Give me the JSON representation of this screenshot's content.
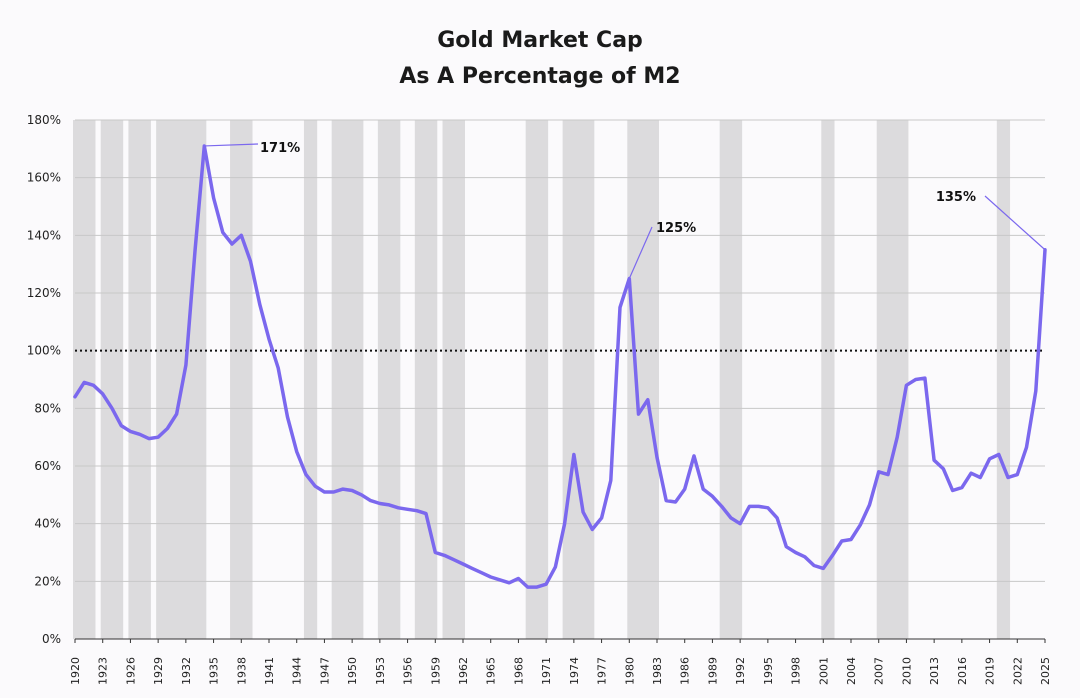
{
  "chart_data": {
    "type": "line",
    "title": "Gold Market Cap",
    "subtitle": "As A Percentage of M2",
    "xlabel": "",
    "ylabel": "",
    "xlim": [
      1920,
      2025
    ],
    "ylim": [
      0,
      180
    ],
    "yticks": [
      0,
      20,
      40,
      60,
      80,
      100,
      120,
      140,
      160,
      180
    ],
    "ytick_labels": [
      "0%",
      "20%",
      "40%",
      "60%",
      "80%",
      "100%",
      "120%",
      "140%",
      "160%",
      "180%"
    ],
    "xticks": [
      1920,
      1923,
      1926,
      1929,
      1932,
      1935,
      1938,
      1941,
      1944,
      1947,
      1950,
      1953,
      1956,
      1959,
      1962,
      1965,
      1968,
      1971,
      1974,
      1977,
      1980,
      1983,
      1986,
      1989,
      1992,
      1995,
      1998,
      2001,
      2004,
      2007,
      2010,
      2013,
      2016,
      2019,
      2022,
      2025
    ],
    "reference_line": {
      "y": 100,
      "style": "dotted"
    },
    "recession_bands": [
      [
        1920,
        1921
      ],
      [
        1923,
        1924
      ],
      [
        1926,
        1927
      ],
      [
        1929,
        1933
      ],
      [
        1937,
        1938
      ],
      [
        1945,
        1945
      ],
      [
        1948,
        1950
      ],
      [
        1953,
        1954
      ],
      [
        1957,
        1958
      ],
      [
        1960,
        1961
      ],
      [
        1969,
        1970
      ],
      [
        1973,
        1975
      ],
      [
        1980,
        1980
      ],
      [
        1981,
        1982
      ],
      [
        1990,
        1991
      ],
      [
        2001,
        2001
      ],
      [
        2007,
        2009
      ],
      [
        2020,
        2020
      ]
    ],
    "series": [
      {
        "name": "Gold Market Cap / M2",
        "color": "#7b68ee",
        "x": [
          1920,
          1921,
          1922,
          1923,
          1924,
          1925,
          1926,
          1927,
          1928,
          1929,
          1930,
          1931,
          1932,
          1933,
          1934,
          1935,
          1936,
          1937,
          1938,
          1939,
          1940,
          1941,
          1942,
          1943,
          1944,
          1945,
          1946,
          1947,
          1948,
          1949,
          1950,
          1951,
          1952,
          1953,
          1954,
          1955,
          1956,
          1957,
          1958,
          1959,
          1960,
          1961,
          1962,
          1963,
          1964,
          1965,
          1966,
          1967,
          1968,
          1969,
          1970,
          1971,
          1972,
          1973,
          1974,
          1975,
          1976,
          1977,
          1978,
          1979,
          1980,
          1981,
          1982,
          1983,
          1984,
          1985,
          1986,
          1987,
          1988,
          1989,
          1990,
          1991,
          1992,
          1993,
          1994,
          1995,
          1996,
          1997,
          1998,
          1999,
          2000,
          2001,
          2002,
          2003,
          2004,
          2005,
          2006,
          2007,
          2008,
          2009,
          2010,
          2011,
          2012,
          2013,
          2014,
          2015,
          2016,
          2017,
          2018,
          2019,
          2020,
          2021,
          2022,
          2023,
          2024,
          2025
        ],
        "y": [
          84,
          89,
          88,
          85,
          80,
          74,
          72,
          71,
          69.5,
          70,
          73,
          78,
          95,
          135,
          171,
          153,
          141,
          137,
          140,
          131,
          116,
          104,
          94,
          77,
          65,
          57,
          53,
          51,
          51,
          52,
          51.5,
          50,
          48,
          47,
          46.5,
          45.5,
          45,
          44.5,
          43.5,
          30,
          29,
          27.5,
          26,
          24.5,
          23,
          21.5,
          20.5,
          19.5,
          21,
          18,
          18,
          19,
          25,
          40,
          64,
          44,
          38,
          42,
          55,
          115,
          125,
          78,
          83,
          63,
          48,
          47.5,
          52,
          63.5,
          52,
          49.5,
          46,
          42,
          40,
          46,
          46,
          45.5,
          42,
          32,
          30,
          28.5,
          25.5,
          24.5,
          29,
          34,
          34.5,
          39.5,
          46.5,
          58,
          57,
          70,
          88,
          90,
          90.5,
          62,
          59,
          51.5,
          52.5,
          57.5,
          56,
          62.5,
          64,
          56,
          57,
          66.5,
          86,
          135
        ]
      }
    ],
    "annotations": [
      {
        "label": "171%",
        "x": 1934,
        "y": 171
      },
      {
        "label": "125%",
        "x": 1980,
        "y": 125
      },
      {
        "label": "135%",
        "x": 2025,
        "y": 135
      }
    ]
  }
}
